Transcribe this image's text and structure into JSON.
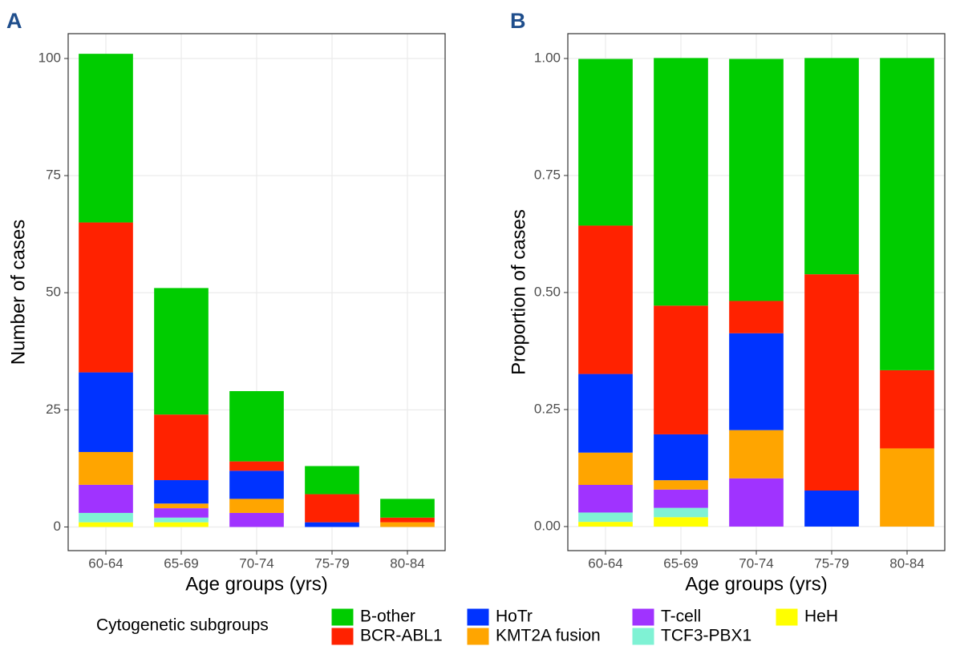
{
  "chart_data": [
    {
      "type": "stacked_bar",
      "panel_label": "A",
      "y_label": "Number of cases",
      "x_label": "Age groups (yrs)",
      "legend_title": "Cytogenetic subgroups",
      "categories": [
        "60-64",
        "65-69",
        "70-74",
        "75-79",
        "80-84"
      ],
      "series": [
        {
          "name": "HeH",
          "color": "#ffff00",
          "values": [
            1,
            1,
            0,
            0,
            0
          ]
        },
        {
          "name": "TCF3-PBX1",
          "color": "#7ff2d4",
          "values": [
            2,
            1,
            0,
            0,
            0
          ]
        },
        {
          "name": "T-cell",
          "color": "#a033ff",
          "values": [
            6,
            2,
            3,
            0,
            0
          ]
        },
        {
          "name": "KMT2A fusion",
          "color": "#ffa500",
          "values": [
            7,
            1,
            3,
            0,
            1
          ]
        },
        {
          "name": "HoTr",
          "color": "#0033ff",
          "values": [
            17,
            5,
            6,
            1,
            0
          ]
        },
        {
          "name": "BCR-ABL1",
          "color": "#ff2200",
          "values": [
            32,
            14,
            2,
            6,
            1
          ]
        },
        {
          "name": "B-other",
          "color": "#00cc00",
          "values": [
            36,
            27,
            15,
            6,
            4
          ]
        }
      ],
      "ylim": [
        -5.05,
        105.3
      ],
      "yticks": [
        0,
        25,
        50,
        75,
        100
      ],
      "grid": true
    },
    {
      "type": "stacked_bar",
      "panel_label": "B",
      "y_label": "Proportion of cases",
      "x_label": "Age groups (yrs)",
      "categories": [
        "60-64",
        "65-69",
        "70-74",
        "75-79",
        "80-84"
      ],
      "series": [
        {
          "name": "HeH",
          "color": "#ffff00",
          "values": [
            0.01,
            0.02,
            0,
            0,
            0
          ]
        },
        {
          "name": "TCF3-PBX1",
          "color": "#7ff2d4",
          "values": [
            0.02,
            0.02,
            0,
            0,
            0
          ]
        },
        {
          "name": "T-cell",
          "color": "#a033ff",
          "values": [
            0.059,
            0.039,
            0.103,
            0,
            0
          ]
        },
        {
          "name": "KMT2A fusion",
          "color": "#ffa500",
          "values": [
            0.069,
            0.02,
            0.103,
            0,
            0.167
          ]
        },
        {
          "name": "HoTr",
          "color": "#0033ff",
          "values": [
            0.168,
            0.098,
            0.207,
            0.077,
            0
          ]
        },
        {
          "name": "BCR-ABL1",
          "color": "#ff2200",
          "values": [
            0.317,
            0.275,
            0.069,
            0.462,
            0.167
          ]
        },
        {
          "name": "B-other",
          "color": "#00cc00",
          "values": [
            0.356,
            0.529,
            0.517,
            0.462,
            0.667
          ]
        }
      ],
      "ylim": [
        -0.0514,
        1.053
      ],
      "yticks": [
        {
          "value": 0,
          "label": "0.00"
        },
        {
          "value": 0.25,
          "label": "0.25"
        },
        {
          "value": 0.5,
          "label": "0.50"
        },
        {
          "value": 0.75,
          "label": "0.75"
        },
        {
          "value": 1,
          "label": "1.00"
        }
      ],
      "grid": true
    }
  ]
}
